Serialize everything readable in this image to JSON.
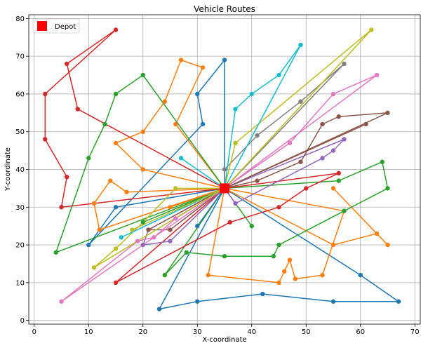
{
  "chart_data": {
    "type": "line",
    "title": "Vehicle Routes",
    "xlabel": "X-coordinate",
    "ylabel": "Y-coordinate",
    "xlim": [
      -1,
      71
    ],
    "ylim": [
      -1,
      81
    ],
    "xticks": [
      0,
      10,
      20,
      30,
      40,
      50,
      60,
      70
    ],
    "yticks": [
      0,
      10,
      20,
      30,
      40,
      50,
      60,
      70,
      80
    ],
    "grid": true,
    "legend": {
      "location": "upper-left",
      "entries": [
        "Depot"
      ]
    },
    "depot": {
      "x": 35,
      "y": 35,
      "color": "#ff0000",
      "label": "Depot"
    },
    "series": [
      {
        "color": "#1f77b4",
        "points": [
          [
            35,
            35
          ],
          [
            35,
            69
          ],
          [
            30,
            60
          ],
          [
            31,
            52
          ],
          [
            10,
            20
          ],
          [
            15,
            30
          ],
          [
            35,
            35
          ]
        ]
      },
      {
        "color": "#1f77b4",
        "points": [
          [
            35,
            35
          ],
          [
            23,
            3
          ],
          [
            30,
            5
          ],
          [
            42,
            7
          ],
          [
            55,
            5
          ],
          [
            67,
            5
          ],
          [
            60,
            12
          ],
          [
            35,
            35
          ]
        ]
      },
      {
        "color": "#ff7f0e",
        "points": [
          [
            35,
            35
          ],
          [
            20,
            40
          ],
          [
            15,
            47
          ],
          [
            20,
            50
          ],
          [
            24,
            58
          ],
          [
            27,
            69
          ],
          [
            31,
            67
          ],
          [
            26,
            52
          ],
          [
            35,
            35
          ]
        ]
      },
      {
        "color": "#ff7f0e",
        "points": [
          [
            35,
            35
          ],
          [
            55,
            20
          ],
          [
            63,
            23
          ],
          [
            65,
            20
          ],
          [
            55,
            35
          ]
        ]
      },
      {
        "color": "#ff7f0e",
        "points": [
          [
            35,
            35
          ],
          [
            32,
            12
          ],
          [
            45,
            10
          ],
          [
            46,
            13
          ],
          [
            47,
            16
          ],
          [
            48,
            11
          ],
          [
            53,
            12
          ],
          [
            57,
            29
          ],
          [
            35,
            35
          ]
        ]
      },
      {
        "color": "#ff7f0e",
        "points": [
          [
            35,
            35
          ],
          [
            17,
            34
          ],
          [
            14,
            37
          ],
          [
            11,
            31
          ],
          [
            12,
            24
          ],
          [
            35,
            35
          ]
        ]
      },
      {
        "color": "#2ca02c",
        "points": [
          [
            35,
            35
          ],
          [
            20,
            65
          ],
          [
            15,
            60
          ],
          [
            13,
            52
          ],
          [
            10,
            43
          ],
          [
            4,
            18
          ],
          [
            35,
            35
          ]
        ]
      },
      {
        "color": "#2ca02c",
        "points": [
          [
            35,
            35
          ],
          [
            56,
            37
          ],
          [
            64,
            42
          ],
          [
            65,
            35
          ],
          [
            57,
            29
          ],
          [
            45,
            20
          ],
          [
            44,
            17
          ],
          [
            35,
            17
          ],
          [
            28,
            18
          ],
          [
            24,
            12
          ],
          [
            35,
            35
          ]
        ]
      },
      {
        "color": "#2ca02c",
        "points": [
          [
            35,
            35
          ],
          [
            40,
            25
          ],
          [
            35,
            35
          ]
        ]
      },
      {
        "color": "#d62728",
        "points": [
          [
            35,
            35
          ],
          [
            8,
            56
          ],
          [
            6,
            68
          ],
          [
            15,
            77
          ],
          [
            2,
            60
          ],
          [
            2,
            48
          ],
          [
            6,
            38
          ],
          [
            5,
            30
          ],
          [
            35,
            35
          ]
        ]
      },
      {
        "color": "#d62728",
        "points": [
          [
            35,
            35
          ],
          [
            56,
            39
          ],
          [
            50,
            35
          ],
          [
            45,
            30
          ],
          [
            36,
            26
          ],
          [
            15,
            10
          ],
          [
            35,
            35
          ]
        ]
      },
      {
        "color": "#9467bd",
        "points": [
          [
            35,
            35
          ],
          [
            57,
            48
          ],
          [
            55,
            45
          ],
          [
            53,
            43
          ],
          [
            37,
            31
          ],
          [
            35,
            35
          ]
        ]
      },
      {
        "color": "#9467bd",
        "points": [
          [
            35,
            35
          ],
          [
            21,
            24
          ],
          [
            20,
            20
          ],
          [
            25,
            21
          ],
          [
            35,
            35
          ]
        ]
      },
      {
        "color": "#8c564b",
        "points": [
          [
            35,
            35
          ],
          [
            65,
            55
          ],
          [
            56,
            54
          ],
          [
            53,
            52
          ],
          [
            49,
            42
          ],
          [
            41,
            37
          ],
          [
            35,
            35
          ]
        ]
      },
      {
        "color": "#8c564b",
        "points": [
          [
            35,
            35
          ],
          [
            61,
            52
          ],
          [
            35,
            35
          ]
        ]
      },
      {
        "color": "#8c564b",
        "points": [
          [
            35,
            35
          ],
          [
            25,
            24
          ],
          [
            21,
            24
          ],
          [
            35,
            35
          ]
        ]
      },
      {
        "color": "#e377c2",
        "points": [
          [
            35,
            35
          ],
          [
            63,
            65
          ],
          [
            55,
            60
          ],
          [
            47,
            47
          ],
          [
            35,
            35
          ]
        ]
      },
      {
        "color": "#e377c2",
        "points": [
          [
            35,
            35
          ],
          [
            26,
            27
          ],
          [
            22,
            22
          ],
          [
            19,
            21
          ],
          [
            5,
            5
          ],
          [
            35,
            35
          ]
        ]
      },
      {
        "color": "#7f7f7f",
        "points": [
          [
            35,
            35
          ],
          [
            57,
            68
          ],
          [
            49,
            58
          ],
          [
            41,
            49
          ],
          [
            35,
            40
          ],
          [
            35,
            35
          ]
        ]
      },
      {
        "color": "#bcbd22",
        "points": [
          [
            35,
            35
          ],
          [
            62,
            77
          ],
          [
            37,
            47
          ],
          [
            35,
            35
          ]
        ]
      },
      {
        "color": "#bcbd22",
        "points": [
          [
            35,
            35
          ],
          [
            26,
            35
          ],
          [
            20,
            26
          ],
          [
            15,
            19
          ],
          [
            11,
            14
          ],
          [
            35,
            35
          ]
        ]
      },
      {
        "color": "#17becf",
        "points": [
          [
            35,
            35
          ],
          [
            49,
            73
          ],
          [
            45,
            65
          ],
          [
            40,
            60
          ],
          [
            37,
            56
          ],
          [
            35,
            35
          ]
        ]
      },
      {
        "color": "#17becf",
        "points": [
          [
            35,
            35
          ],
          [
            27,
            43
          ],
          [
            35,
            35
          ]
        ]
      },
      {
        "color": "#17becf",
        "points": [
          [
            35,
            35
          ],
          [
            16,
            22
          ],
          [
            35,
            35
          ]
        ]
      },
      {
        "color": "#1f77b4",
        "points": [
          [
            35,
            35
          ],
          [
            30,
            25
          ],
          [
            35,
            35
          ]
        ]
      },
      {
        "color": "#ff7f0e",
        "points": [
          [
            35,
            35
          ],
          [
            25,
            30
          ],
          [
            35,
            35
          ]
        ]
      },
      {
        "color": "#2ca02c",
        "points": [
          [
            35,
            35
          ],
          [
            20,
            26
          ],
          [
            35,
            35
          ]
        ]
      },
      {
        "color": "#bcbd22",
        "points": [
          [
            35,
            35
          ],
          [
            18,
            24
          ],
          [
            35,
            35
          ]
        ]
      }
    ]
  }
}
